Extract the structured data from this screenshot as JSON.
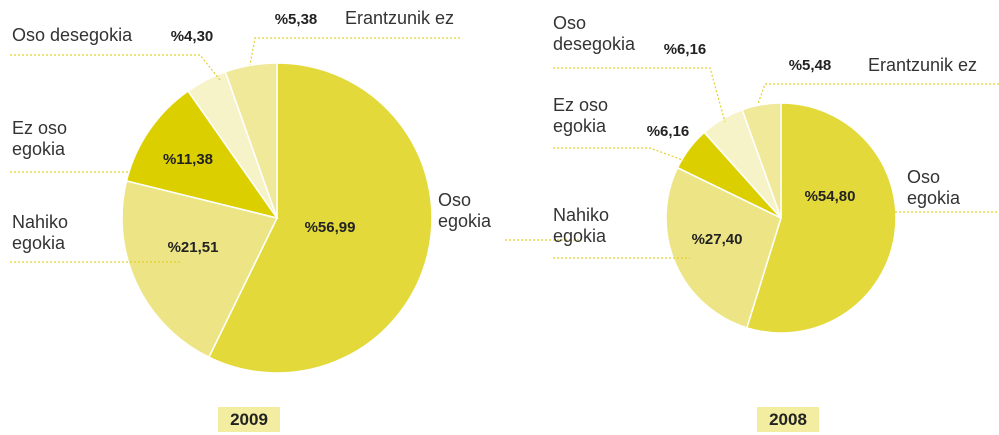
{
  "chart_data": [
    {
      "type": "pie",
      "title": "2009",
      "categories": [
        "Oso egokia",
        "Nahiko egokia",
        "Ez oso egokia",
        "Oso desegokia",
        "Erantzunik ez"
      ],
      "values": [
        56.99,
        21.51,
        11.38,
        4.3,
        5.38
      ],
      "value_labels": [
        "%56,99",
        "%21,51",
        "%11,38",
        "%4,30",
        "%5,38"
      ],
      "colors": [
        "#e3d93a",
        "#ede585",
        "#dccf00",
        "#f7f3c8",
        "#f0e99a"
      ]
    },
    {
      "type": "pie",
      "title": "2008",
      "categories": [
        "Oso egokia",
        "Nahiko egokia",
        "Ez oso egokia",
        "Oso desegokia",
        "Erantzunik ez"
      ],
      "values": [
        54.8,
        27.4,
        6.16,
        6.16,
        5.48
      ],
      "value_labels": [
        "%54,80",
        "%27,40",
        "%6,16",
        "%6,16",
        "%5,48"
      ],
      "colors": [
        "#e3d93a",
        "#ede585",
        "#dccf00",
        "#f7f3c8",
        "#f0e99a"
      ]
    }
  ]
}
